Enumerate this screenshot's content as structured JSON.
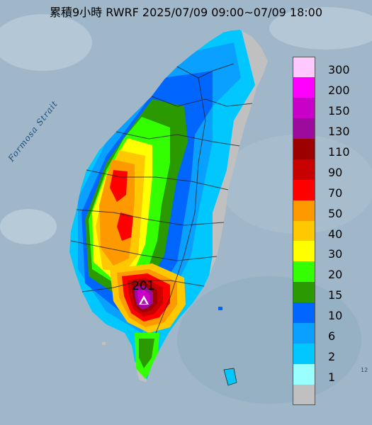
{
  "title": "累積9小時 RWRF 2025/07/09 09:00~07/09 18:00",
  "strait_label": "Formosa Strait",
  "max_value_label": "201",
  "corner_label": "12",
  "legend": [
    {
      "label": "300",
      "color": "#ffc9ff"
    },
    {
      "label": "200",
      "color": "#ff00ff"
    },
    {
      "label": "150",
      "color": "#c800c8"
    },
    {
      "label": "130",
      "color": "#9c0b9c"
    },
    {
      "label": "110",
      "color": "#9c0000"
    },
    {
      "label": "90",
      "color": "#c80000"
    },
    {
      "label": "70",
      "color": "#ff0000"
    },
    {
      "label": "50",
      "color": "#ff9900"
    },
    {
      "label": "40",
      "color": "#ffc800"
    },
    {
      "label": "30",
      "color": "#ffff00"
    },
    {
      "label": "20",
      "color": "#33ff00"
    },
    {
      "label": "15",
      "color": "#2a9a00"
    },
    {
      "label": "10",
      "color": "#0066ff"
    },
    {
      "label": "6",
      "color": "#0aa0ff"
    },
    {
      "label": "2",
      "color": "#00c8ff"
    },
    {
      "label": "1",
      "color": "#99ffff"
    },
    {
      "label": "",
      "color": "#c0c0c0"
    }
  ],
  "colors": {
    "sea": "#9fb7c9",
    "land_no_rain": "#c0c0c0",
    "county_border": "#222222"
  }
}
